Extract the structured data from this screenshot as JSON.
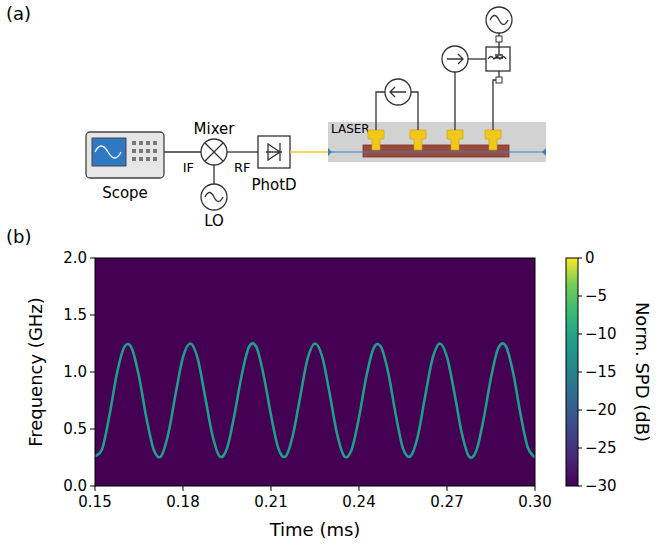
{
  "diagram": {
    "label": "(a)",
    "nodes": {
      "scope": "Scope",
      "mixer": "Mixer",
      "lo": "LO",
      "photodiode": "PhotD",
      "laser": "LASER"
    },
    "ports": {
      "if": "IF",
      "rf": "RF"
    }
  },
  "chart_data": {
    "type": "line",
    "panel_label": "(b)",
    "xlabel": "Time (ms)",
    "ylabel": "Frequency (GHz)",
    "x": [
      0.15,
      0.1525,
      0.155,
      0.1575,
      0.16,
      0.1625,
      0.165,
      0.1675,
      0.17,
      0.1725,
      0.175,
      0.1775,
      0.18,
      0.1825,
      0.185,
      0.1875,
      0.19,
      0.1925,
      0.195,
      0.1975,
      0.2,
      0.2025,
      0.205,
      0.2075,
      0.21,
      0.2125,
      0.215,
      0.2175,
      0.22,
      0.2225,
      0.225,
      0.2275,
      0.23,
      0.2325,
      0.235,
      0.2375,
      0.24,
      0.2425,
      0.245,
      0.2475,
      0.25,
      0.2525,
      0.255,
      0.2575,
      0.26,
      0.2625,
      0.265,
      0.2675,
      0.27,
      0.2725,
      0.275,
      0.2775,
      0.28,
      0.2825,
      0.285,
      0.2875,
      0.29,
      0.2925,
      0.295,
      0.2975,
      0.3
    ],
    "series": [
      {
        "color": "#1f9e89",
        "values": [
          0.26,
          0.33,
          0.63,
          0.99,
          1.22,
          1.21,
          0.96,
          0.6,
          0.32,
          0.26,
          0.46,
          0.81,
          1.13,
          1.25,
          1.12,
          0.79,
          0.45,
          0.26,
          0.33,
          0.62,
          0.97,
          1.22,
          1.22,
          0.97,
          0.62,
          0.33,
          0.26,
          0.45,
          0.79,
          1.12,
          1.25,
          1.13,
          0.81,
          0.46,
          0.26,
          0.32,
          0.6,
          0.96,
          1.21,
          1.22,
          0.99,
          0.63,
          0.33,
          0.26,
          0.43,
          0.78,
          1.11,
          1.25,
          1.13,
          0.82,
          0.47,
          0.26,
          0.31,
          0.59,
          0.95,
          1.21,
          1.23,
          1.0,
          0.64,
          0.34,
          0.25
        ]
      }
    ],
    "xlim": [
      0.15,
      0.3
    ],
    "xticks": [
      0.15,
      0.18,
      0.21,
      0.24,
      0.27,
      {
        "value": 0.3,
        "label": "0.30"
      }
    ],
    "ylim": [
      0,
      2
    ],
    "yticks": [
      {
        "value": 0,
        "label": "0.0"
      },
      0.5,
      {
        "value": 1,
        "label": "1.0"
      },
      1.5,
      {
        "value": 2,
        "label": "2.0"
      }
    ],
    "grid": false,
    "colorbar": {
      "label": "Norm. SPD (dB)",
      "range": [
        -30,
        0
      ],
      "ticks": [
        {
          "value": 0,
          "label": "0"
        },
        {
          "value": -5,
          "label": "−5"
        },
        {
          "value": -10,
          "label": "−10"
        },
        {
          "value": -15,
          "label": "−15"
        },
        {
          "value": -20,
          "label": "−20"
        },
        {
          "value": -25,
          "label": "−25"
        },
        {
          "value": -30,
          "label": "−30"
        }
      ]
    }
  }
}
